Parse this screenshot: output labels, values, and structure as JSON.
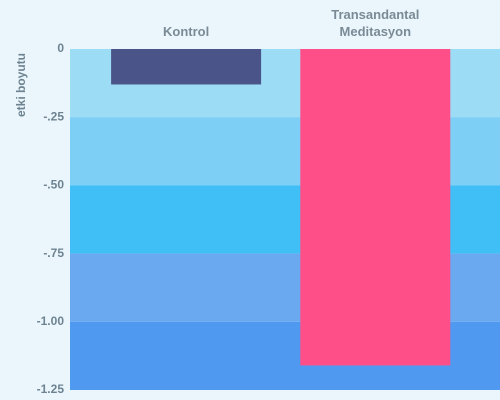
{
  "chart_data": {
    "type": "bar",
    "y_label": "etki boyutu",
    "categories": [
      "Kontrol",
      "Transandantal Meditasyon"
    ],
    "values": [
      -0.13,
      -1.16
    ],
    "colors": [
      "#4a5488",
      "#ff4f88"
    ],
    "ylim": [
      0,
      -1.25
    ],
    "yticks": [
      0,
      {
        "value": -0.25,
        "label": "-.25"
      },
      {
        "value": -0.5,
        "label": "-.50"
      },
      {
        "value": -0.75,
        "label": "-.75"
      },
      {
        "value": -1.0,
        "label": "-1.00"
      },
      -1.25
    ],
    "band_colors": [
      "#9ddcf5",
      "#7dcff5",
      "#3fbff6",
      "#6aa9f0",
      "#4f99f1"
    ]
  }
}
